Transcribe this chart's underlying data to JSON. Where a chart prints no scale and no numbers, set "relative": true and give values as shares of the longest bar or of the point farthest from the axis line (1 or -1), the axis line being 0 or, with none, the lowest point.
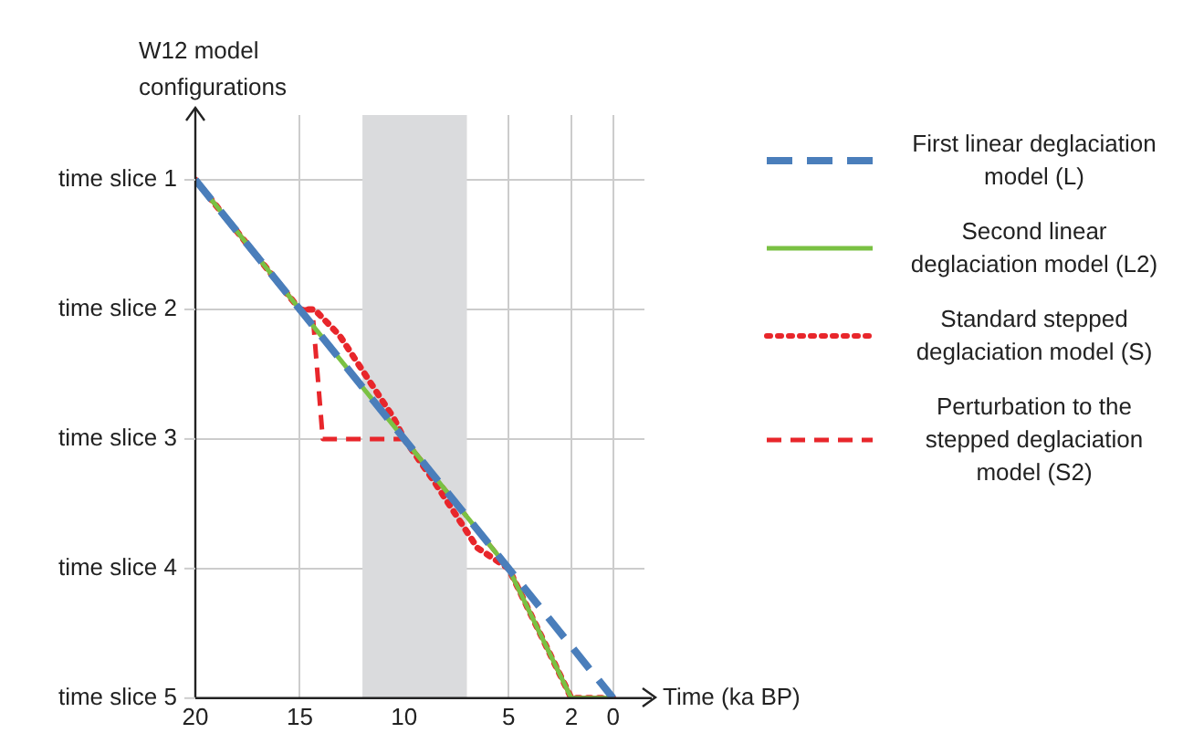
{
  "chart_data": {
    "type": "line",
    "relative": true,
    "ylabel": "W12 model configurations",
    "xlabel": "Time (ka BP)",
    "xlim": [
      20,
      -1.5
    ],
    "xticks": [
      20,
      15,
      10,
      5,
      2,
      0
    ],
    "y_categories": [
      "time slice 1",
      "time slice 2",
      "time slice 3",
      "time slice 4",
      "time slice 5"
    ],
    "grid": true,
    "legend": "right",
    "marker": "none",
    "bands": [
      {
        "axis": "x",
        "from": 12,
        "to": 7,
        "color": "#dadbdd"
      }
    ],
    "series": [
      {
        "name": "First linear deglaciation model (L)",
        "color": "#4a7ebb",
        "line_style": "dashed",
        "x": [
          20,
          0
        ],
        "values": [
          1,
          0
        ]
      },
      {
        "name": "Second linear deglaciation model (L2)",
        "color": "#7ac143",
        "line_style": "solid",
        "x": [
          20,
          5,
          2,
          0
        ],
        "values": [
          1,
          0.25,
          0,
          0
        ]
      },
      {
        "name": "Standard stepped deglaciation model (S)",
        "color": "#e8262b",
        "line_style": "dotted",
        "x": [
          20,
          15,
          14.3,
          13.1,
          11.8,
          10.5,
          10,
          8.6,
          6.5,
          5,
          2,
          0
        ],
        "values": [
          1,
          0.75,
          0.75,
          0.7,
          0.62,
          0.54,
          0.5,
          0.42,
          0.29,
          0.25,
          0,
          0
        ]
      },
      {
        "name": "Perturbation to the stepped deglaciation model (S2)",
        "color": "#e8262b",
        "line_style": "dashed",
        "x": [
          20,
          15,
          14.4,
          13.9,
          10,
          5,
          2,
          0
        ],
        "values": [
          1,
          0.75,
          0.75,
          0.5,
          0.5,
          0.25,
          0,
          0
        ]
      }
    ]
  }
}
